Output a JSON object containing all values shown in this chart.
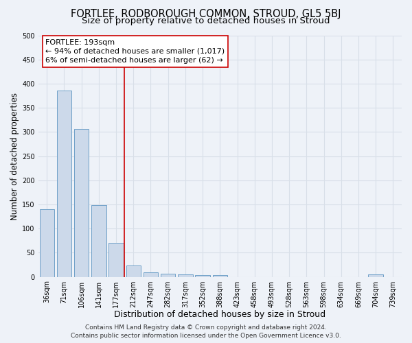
{
  "title": "FORTLEE, RODBOROUGH COMMON, STROUD, GL5 5BJ",
  "subtitle": "Size of property relative to detached houses in Stroud",
  "xlabel": "Distribution of detached houses by size in Stroud",
  "ylabel": "Number of detached properties",
  "bin_labels": [
    "36sqm",
    "71sqm",
    "106sqm",
    "141sqm",
    "177sqm",
    "212sqm",
    "247sqm",
    "282sqm",
    "317sqm",
    "352sqm",
    "388sqm",
    "423sqm",
    "458sqm",
    "493sqm",
    "528sqm",
    "563sqm",
    "598sqm",
    "634sqm",
    "669sqm",
    "704sqm",
    "739sqm"
  ],
  "bar_values": [
    140,
    385,
    306,
    148,
    70,
    23,
    9,
    7,
    5,
    4,
    4,
    0,
    0,
    0,
    0,
    0,
    0,
    0,
    0,
    5,
    0
  ],
  "bar_color": "#ccd9ea",
  "bar_edge_color": "#6fa0c8",
  "vline_x": 4.46,
  "vline_color": "#cc0000",
  "ylim": [
    0,
    500
  ],
  "yticks": [
    0,
    50,
    100,
    150,
    200,
    250,
    300,
    350,
    400,
    450,
    500
  ],
  "annotation_title": "FORTLEE: 193sqm",
  "annotation_line1": "← 94% of detached houses are smaller (1,017)",
  "annotation_line2": "6% of semi-detached houses are larger (62) →",
  "footer_line1": "Contains HM Land Registry data © Crown copyright and database right 2024.",
  "footer_line2": "Contains public sector information licensed under the Open Government Licence v3.0.",
  "background_color": "#eef2f8",
  "grid_color": "#d8dfe8",
  "title_fontsize": 10.5,
  "subtitle_fontsize": 9.5,
  "xlabel_fontsize": 9,
  "ylabel_fontsize": 8.5,
  "tick_fontsize": 7,
  "annotation_fontsize": 8,
  "footer_fontsize": 6.5
}
